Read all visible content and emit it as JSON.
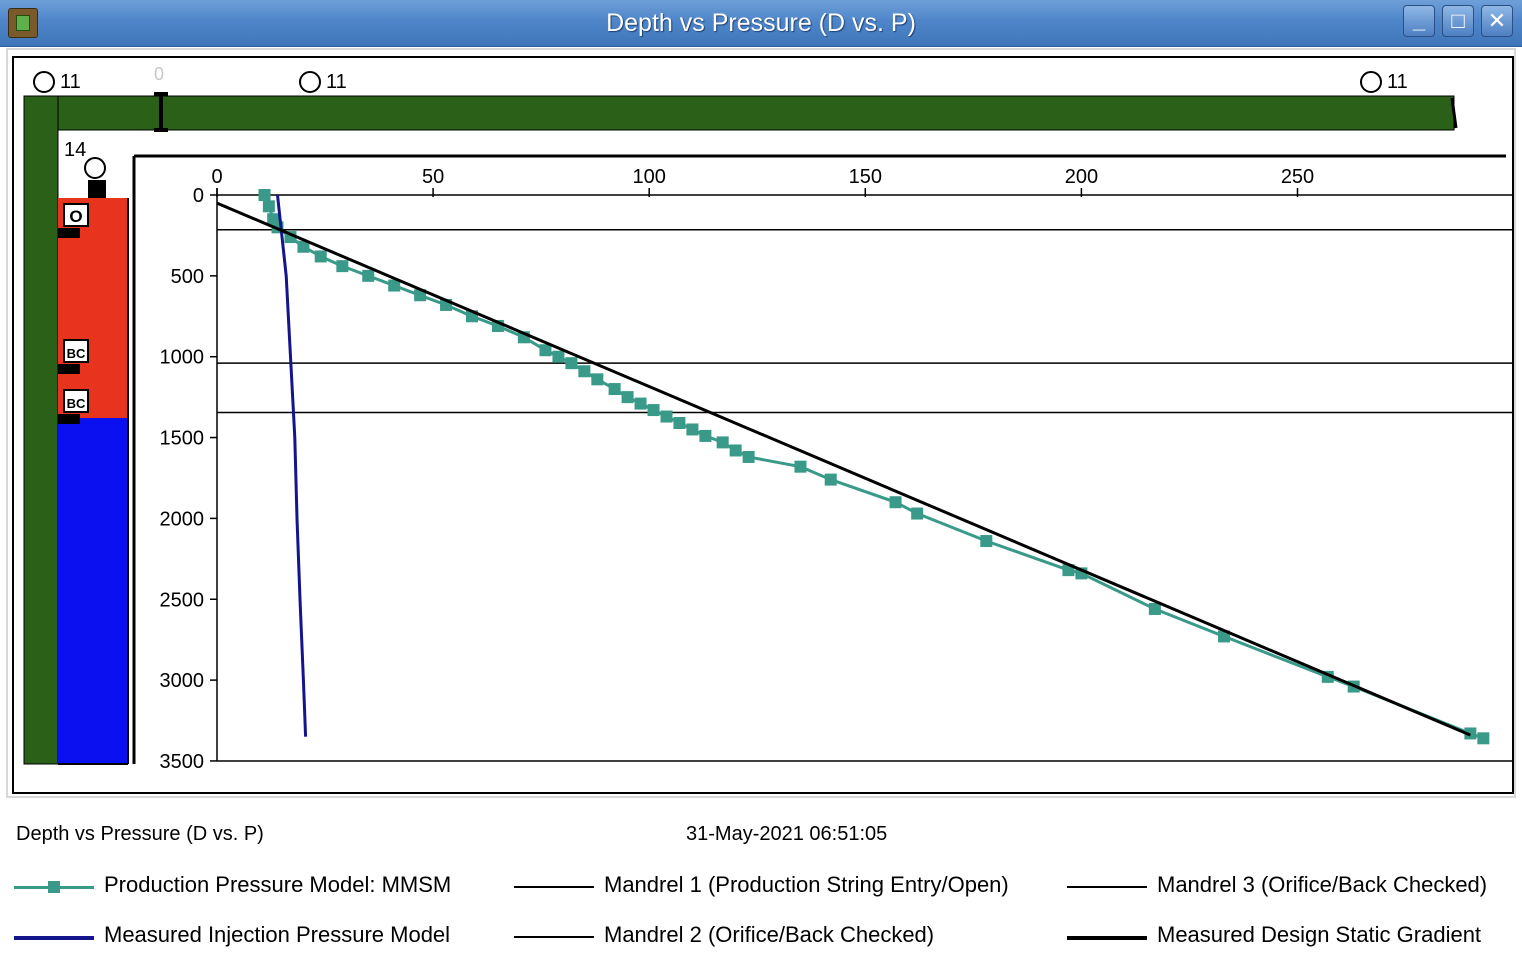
{
  "window": {
    "title": "Depth vs Pressure (D vs. P)",
    "buttons": {
      "minimize": "_",
      "maximize": "□",
      "close": "✕"
    }
  },
  "well_diagram": {
    "labels": {
      "left_11": "11",
      "zero": "0",
      "mid_11": "11",
      "right_11": "11",
      "casing_14": "14"
    },
    "valves": [
      "O",
      "BC",
      "BC"
    ],
    "colors": {
      "casing": "#2a6018",
      "liquid_red": "#e8341f",
      "liquid_blue": "#0a10f0"
    }
  },
  "footer": {
    "title": "Depth vs Pressure (D vs. P)",
    "timestamp": "31-May-2021 06:51:05"
  },
  "legend": [
    {
      "label": "Production Pressure Model: MMSM",
      "color": "#3a9a8a",
      "marker": "square"
    },
    {
      "label": "Mandrel 1 (Production String Entry/Open)",
      "color": "#000000"
    },
    {
      "label": "Mandrel 3 (Orifice/Back Checked)",
      "color": "#000000"
    },
    {
      "label": "Measured Injection Pressure Model",
      "color": "#14148c"
    },
    {
      "label": "Mandrel 2 (Orifice/Back Checked)",
      "color": "#000000"
    },
    {
      "label": "Measured Design Static Gradient",
      "color": "#000000",
      "thick": true
    }
  ],
  "chart_data": {
    "type": "line",
    "x_ticks": [
      "0",
      "50",
      "100",
      "150",
      "200",
      "250"
    ],
    "y_ticks": [
      "0",
      "500",
      "1000",
      "1500",
      "2000",
      "2500",
      "3000",
      "3500"
    ],
    "xlim": [
      0,
      300
    ],
    "ylim": [
      0,
      3500
    ],
    "y_inverted": true,
    "x_axis_position": "top",
    "grid": false,
    "series": [
      {
        "name": "Production Pressure Model: MMSM",
        "color": "#3a9a8a",
        "marker": "square",
        "points": [
          [
            11,
            0
          ],
          [
            12,
            70
          ],
          [
            13,
            150
          ],
          [
            14,
            200
          ],
          [
            17,
            260
          ],
          [
            20,
            320
          ],
          [
            24,
            380
          ],
          [
            29,
            440
          ],
          [
            35,
            500
          ],
          [
            41,
            560
          ],
          [
            47,
            620
          ],
          [
            53,
            680
          ],
          [
            59,
            750
          ],
          [
            65,
            810
          ],
          [
            71,
            880
          ],
          [
            76,
            960
          ],
          [
            79,
            1000
          ],
          [
            82,
            1040
          ],
          [
            85,
            1090
          ],
          [
            88,
            1140
          ],
          [
            92,
            1200
          ],
          [
            95,
            1250
          ],
          [
            98,
            1290
          ],
          [
            101,
            1330
          ],
          [
            104,
            1370
          ],
          [
            107,
            1410
          ],
          [
            110,
            1450
          ],
          [
            113,
            1490
          ],
          [
            117,
            1530
          ],
          [
            120,
            1580
          ],
          [
            123,
            1620
          ],
          [
            135,
            1680
          ],
          [
            142,
            1760
          ],
          [
            157,
            1900
          ],
          [
            162,
            1970
          ],
          [
            178,
            2140
          ],
          [
            197,
            2320
          ],
          [
            200,
            2340
          ],
          [
            217,
            2560
          ],
          [
            233,
            2730
          ],
          [
            257,
            2980
          ],
          [
            263,
            3040
          ],
          [
            290,
            3330
          ],
          [
            293,
            3360
          ]
        ]
      },
      {
        "name": "Measured Injection Pressure Model",
        "color": "#14148c",
        "points": [
          [
            14,
            0
          ],
          [
            16,
            500
          ],
          [
            17,
            1000
          ],
          [
            18,
            1500
          ],
          [
            18.5,
            2000
          ],
          [
            19.2,
            2500
          ],
          [
            20,
            3000
          ],
          [
            20.5,
            3350
          ]
        ]
      },
      {
        "name": "Measured Design Static Gradient",
        "color": "#000000",
        "points": [
          [
            0,
            50
          ],
          [
            290,
            3340
          ]
        ]
      }
    ],
    "mandrels": [
      {
        "name": "Mandrel 1 (Production String Entry/Open)",
        "depth": 215
      },
      {
        "name": "Mandrel 2 (Orifice/Back Checked)",
        "depth": 1040
      },
      {
        "name": "Mandrel 3 (Orifice/Back Checked)",
        "depth": 1345
      }
    ]
  }
}
